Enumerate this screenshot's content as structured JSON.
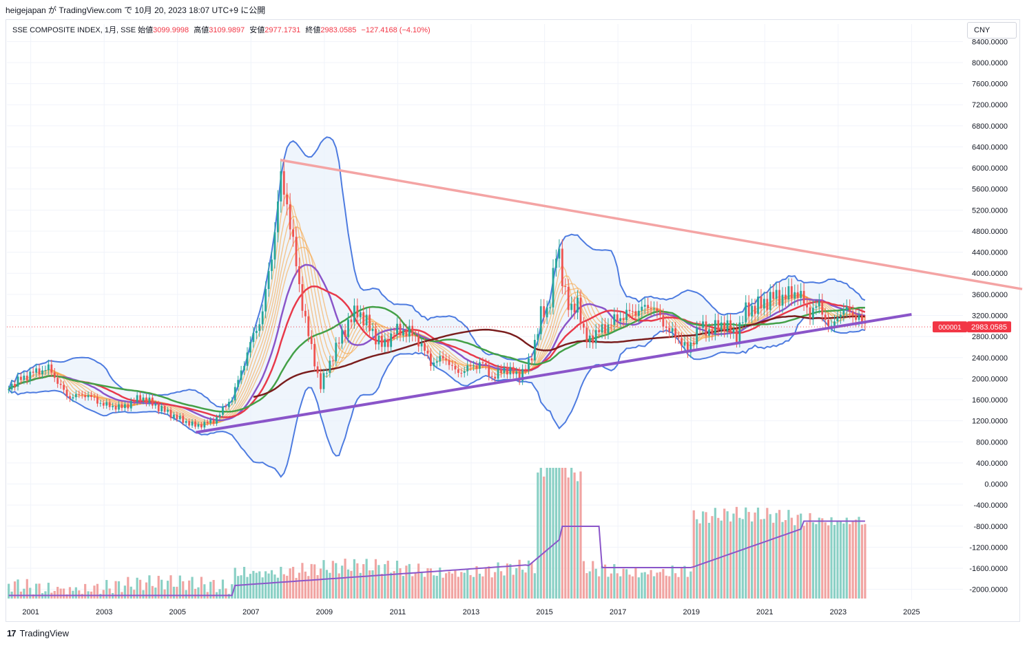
{
  "header": {
    "publish_line": "heigejapan が TradingView.com で 10月 20, 2023 18:07 UTC+9 に公開"
  },
  "legend": {
    "symbol": "SSE COMPOSITE INDEX, 1月, SSE",
    "open_label": "始値",
    "open_value": "3099.9998",
    "high_label": "高値",
    "high_value": "3109.9897",
    "low_label": "安値",
    "low_value": "2977.1731",
    "close_label": "終値",
    "close_value": "2983.0585",
    "change": "−127.4168 (−4.10%)"
  },
  "currency_button": "CNY",
  "price_tag": {
    "symbol": "000001",
    "value": "2983.0585"
  },
  "footer": {
    "brand": "TradingView"
  },
  "colors": {
    "up": "#26a69a",
    "down": "#ef5350",
    "bollinger": "#4d7be0",
    "bollinger_fill": "#e8f1fb",
    "ema_ribbon": "#f7a13b",
    "red_ma": "#e8394a",
    "green_ma": "#43a047",
    "dark_ma": "#7a1d1d",
    "purple_ma": "#8a55c9",
    "trend_pink": "#f4a4a4",
    "trend_purple": "#8a55c9"
  },
  "chart_data": {
    "type": "candlestick",
    "timeframe": "1M",
    "ylim": [
      -2200,
      8600
    ],
    "y_ticks": [
      "8400.0000",
      "8000.0000",
      "7600.0000",
      "7200.0000",
      "6800.0000",
      "6400.0000",
      "6000.0000",
      "5600.0000",
      "5200.0000",
      "4800.0000",
      "4400.0000",
      "4000.0000",
      "3600.0000",
      "3200.0000",
      "2800.0000",
      "2400.0000",
      "2000.0000",
      "1600.0000",
      "1200.0000",
      "800.0000",
      "400.0000",
      "0.0000",
      "-400.0000",
      "-800.0000",
      "-1200.0000",
      "-1600.0000",
      "-2000.0000"
    ],
    "x_ticks": [
      "2001",
      "2003",
      "2005",
      "2007",
      "2009",
      "2011",
      "2013",
      "2015",
      "2017",
      "2019",
      "2021",
      "2023",
      "2025"
    ],
    "xlim": [
      2000.35,
      2026.4
    ],
    "last_close": 2983.0585,
    "close_series": {
      "x": [
        2000.4,
        2001.0,
        2001.5,
        2002.0,
        2002.5,
        2003.0,
        2003.5,
        2004.0,
        2004.5,
        2005.0,
        2005.5,
        2006.0,
        2006.5,
        2007.0,
        2007.3,
        2007.6,
        2007.8,
        2008.0,
        2008.3,
        2008.6,
        2008.9,
        2009.2,
        2009.6,
        2009.9,
        2010.3,
        2010.6,
        2010.9,
        2011.3,
        2011.6,
        2011.9,
        2012.3,
        2012.6,
        2012.9,
        2013.3,
        2013.6,
        2013.9,
        2014.3,
        2014.6,
        2014.9,
        2015.1,
        2015.35,
        2015.5,
        2015.7,
        2015.9,
        2016.1,
        2016.5,
        2016.9,
        2017.3,
        2017.6,
        2017.9,
        2018.1,
        2018.4,
        2018.7,
        2018.9,
        2019.2,
        2019.5,
        2019.9,
        2020.2,
        2020.5,
        2020.9,
        2021.2,
        2021.5,
        2021.9,
        2022.2,
        2022.5,
        2022.8,
        2023.0,
        2023.3,
        2023.6,
        2023.8
      ],
      "close": [
        1850,
        2100,
        2200,
        1650,
        1700,
        1500,
        1450,
        1650,
        1450,
        1250,
        1100,
        1200,
        1650,
        2700,
        3200,
        4500,
        5800,
        5300,
        3800,
        2700,
        1850,
        2400,
        3000,
        3300,
        2900,
        2600,
        2900,
        2900,
        2700,
        2300,
        2400,
        2100,
        2200,
        2300,
        2000,
        2200,
        2050,
        2300,
        3200,
        3300,
        4500,
        3900,
        3200,
        3500,
        2700,
        2900,
        3100,
        3250,
        3300,
        3400,
        3200,
        2900,
        2750,
        2500,
        3000,
        2900,
        3050,
        2800,
        3300,
        3400,
        3550,
        3550,
        3650,
        3250,
        3400,
        2900,
        3250,
        3300,
        3100,
        2983
      ]
    },
    "volume_series_note": "histogram bars at bottom pane with purple moving average"
  }
}
